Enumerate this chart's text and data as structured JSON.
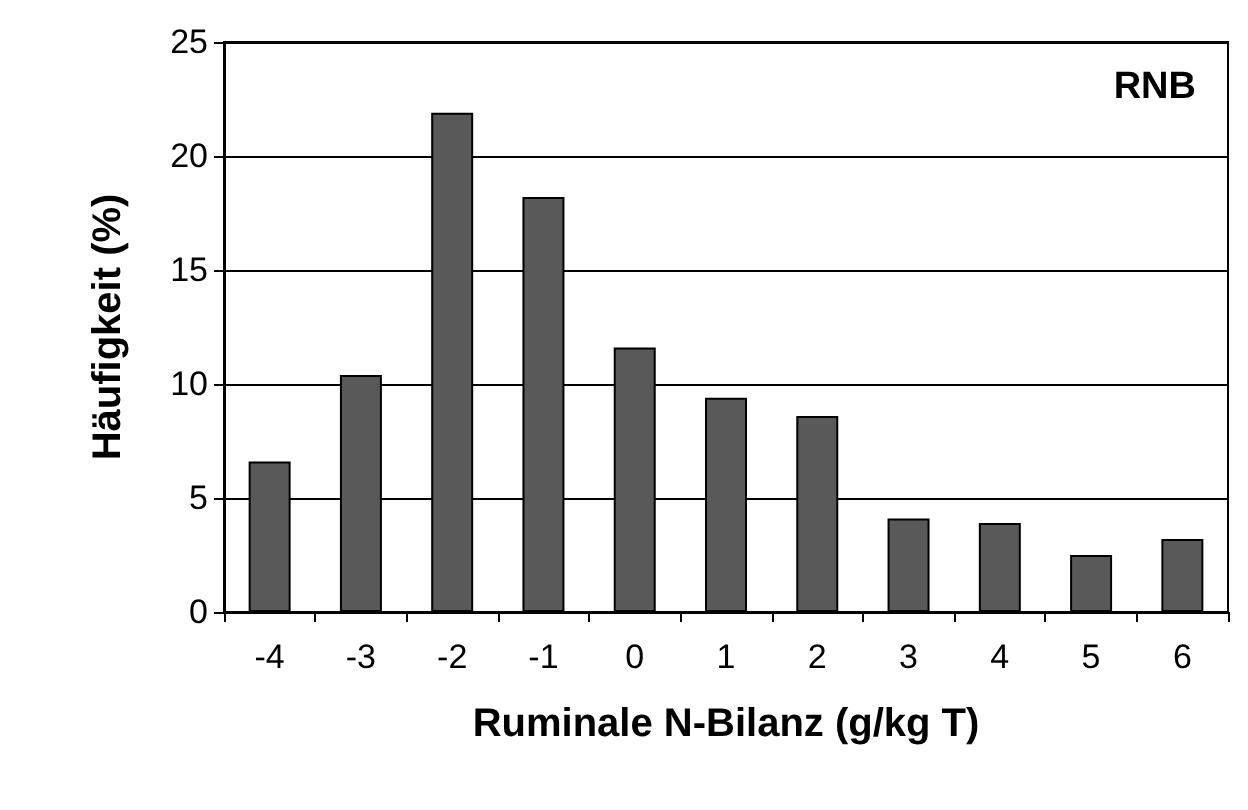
{
  "chart_data": {
    "type": "bar",
    "categories": [
      "-4",
      "-3",
      "-2",
      "-1",
      "0",
      "1",
      "2",
      "3",
      "4",
      "5",
      "6"
    ],
    "values": [
      6.6,
      10.4,
      21.9,
      18.2,
      11.6,
      9.4,
      8.6,
      4.1,
      3.9,
      2.5,
      3.2
    ],
    "color": "#595959",
    "xlabel": "Ruminale N-Bilanz (g/kg T)",
    "ylabel": "Häufigkeit (%)",
    "annotations": [
      "RNB"
    ],
    "ylim": [
      0,
      25
    ],
    "yticks": [
      0,
      5,
      10,
      15,
      20,
      25
    ],
    "grid": "y"
  }
}
